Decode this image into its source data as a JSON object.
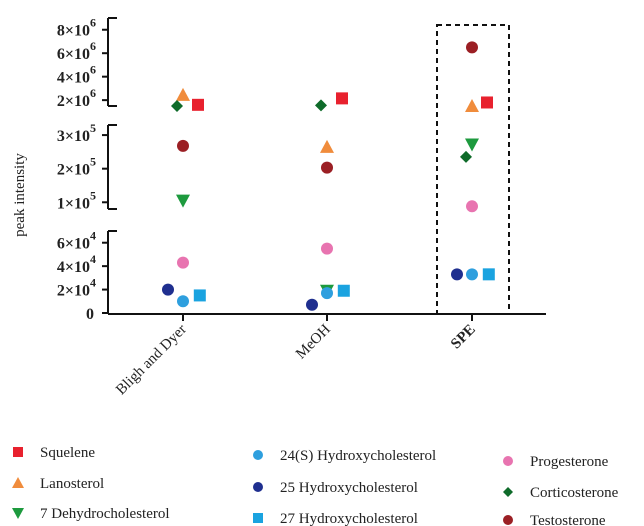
{
  "chart_data": {
    "type": "scatter",
    "ylabel": "peak intensity",
    "y_scale": "segmented (three linear segments with axis breaks)",
    "y_segments": [
      {
        "range": [
          0,
          70000
        ],
        "ticks": [
          0,
          20000,
          40000,
          60000
        ]
      },
      {
        "range": [
          80000,
          330000
        ],
        "ticks": [
          100000,
          200000,
          300000
        ]
      },
      {
        "range": [
          1500000,
          9000000
        ],
        "ticks": [
          2000000,
          4000000,
          6000000,
          8000000
        ]
      }
    ],
    "tick_labels": {
      "0": "0",
      "20000": "2×10⁴",
      "40000": "4×10⁴",
      "60000": "6×10⁴",
      "100000": "1×10⁵",
      "200000": "2×10⁵",
      "300000": "3×10⁵",
      "2000000": "2×10⁶",
      "4000000": "4×10⁶",
      "6000000": "6×10⁶",
      "8000000": "8×10⁶"
    },
    "categories": [
      "Bligh and Dyer",
      "MeOH",
      "SPE"
    ],
    "highlighted_category": "SPE",
    "legend_position": "bottom",
    "series": [
      {
        "name": "Squelene",
        "marker": "square",
        "color": "#e8212e",
        "offset": 0.25,
        "values": [
          1600000,
          2150000,
          1800000
        ]
      },
      {
        "name": "Lanosterol",
        "marker": "triangle-up",
        "color": "#f08c3c",
        "offset": 0.0,
        "values": [
          2450000,
          265000,
          1500000
        ]
      },
      {
        "name": "7 Dehydrocholesterol",
        "marker": "triangle-down",
        "color": "#1d9a3e",
        "offset": 0.0,
        "values": [
          105000,
          19000,
          272000
        ]
      },
      {
        "name": "24(S) Hydroxycholesterol",
        "marker": "circle",
        "color": "#2e9fde",
        "offset": 0.0,
        "values": [
          10000,
          17000,
          33000
        ]
      },
      {
        "name": "25 Hydroxycholesterol",
        "marker": "circle",
        "color": "#1f2f8f",
        "offset": -0.25,
        "values": [
          20000,
          7000,
          33000
        ]
      },
      {
        "name": "27 Hydroxycholesterol",
        "marker": "square",
        "color": "#1aa3e0",
        "offset": 0.28,
        "values": [
          15000,
          19000,
          33000
        ]
      },
      {
        "name": "Progesterone",
        "marker": "circle",
        "color": "#e874b0",
        "offset": 0.0,
        "values": [
          43000,
          55000,
          88000
        ]
      },
      {
        "name": "Corticosterone",
        "marker": "diamond",
        "color": "#0f6b2a",
        "offset": -0.1,
        "values": [
          1500000,
          1550000,
          235000
        ]
      },
      {
        "name": "Testosterone",
        "marker": "circle",
        "color": "#9b1f24",
        "offset": 0.0,
        "values": [
          268000,
          203000,
          6500000
        ]
      }
    ]
  }
}
